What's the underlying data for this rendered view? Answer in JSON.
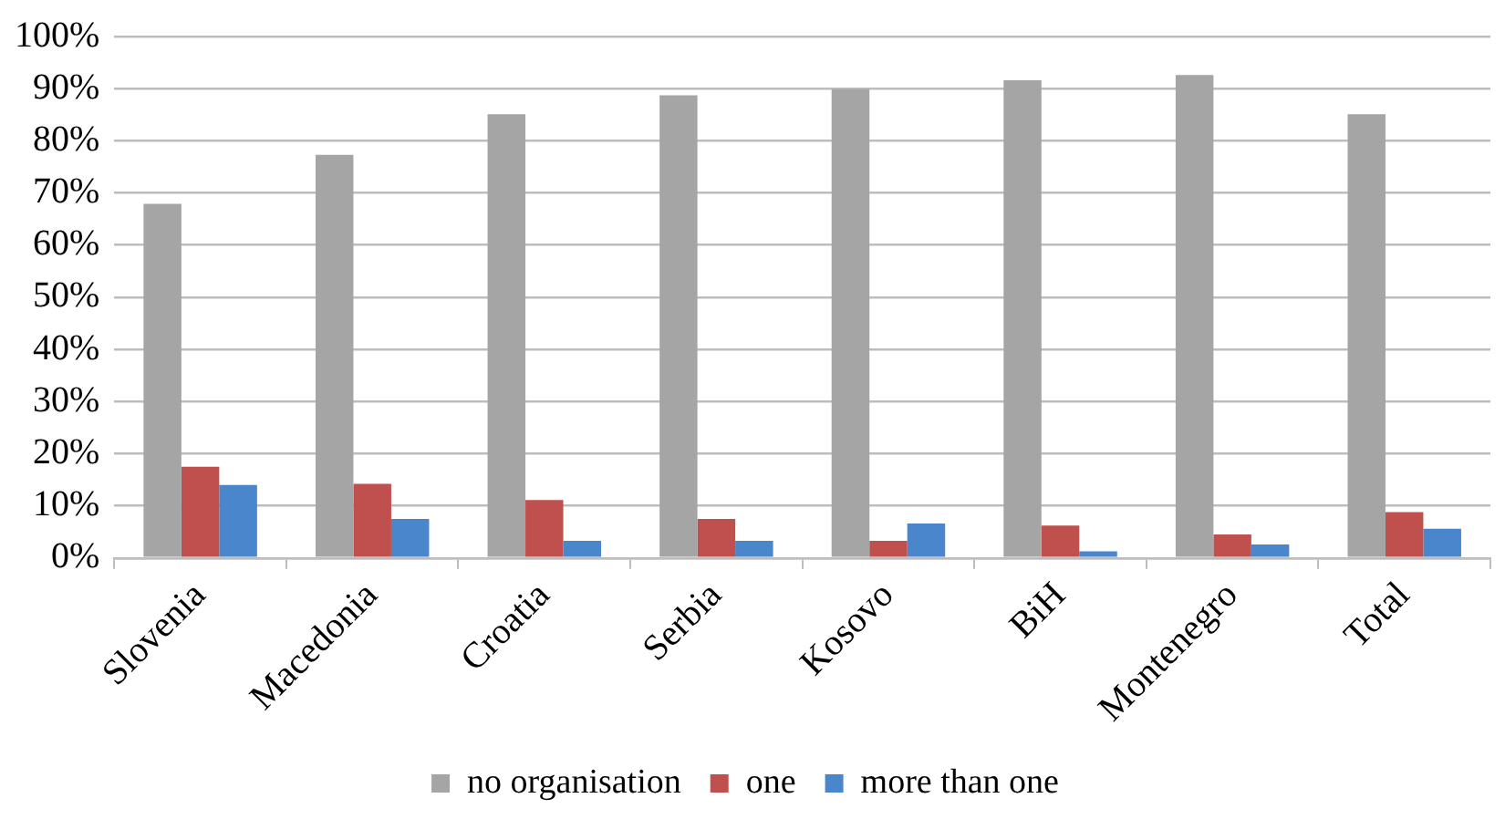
{
  "chart_data": {
    "type": "bar",
    "categories": [
      "Slovenia",
      "Macedonia",
      "Croatia",
      "Serbia",
      "Kosovo",
      "BiH",
      "Montenegro",
      "Total"
    ],
    "series": [
      {
        "name": "no organisation",
        "color": "#a5a5a5",
        "values": [
          67.9,
          77.3,
          85.1,
          88.7,
          89.9,
          91.6,
          92.6,
          85.1
        ]
      },
      {
        "name": "one",
        "color": "#c0504d",
        "values": [
          17.5,
          14.2,
          11.1,
          7.5,
          3.3,
          6.2,
          4.5,
          8.8
        ]
      },
      {
        "name": "more than one",
        "color": "#4a86cc",
        "values": [
          14.0,
          7.5,
          3.3,
          3.3,
          6.6,
          1.3,
          2.6,
          5.6
        ]
      }
    ],
    "ylim": [
      0,
      100
    ],
    "yticks": [
      {
        "value": 0,
        "label": "0%"
      },
      {
        "value": 10,
        "label": "10%"
      },
      {
        "value": 20,
        "label": "20%"
      },
      {
        "value": 30,
        "label": "30%"
      },
      {
        "value": 40,
        "label": "40%"
      },
      {
        "value": 50,
        "label": "50%"
      },
      {
        "value": 60,
        "label": "60%"
      },
      {
        "value": 70,
        "label": "70%"
      },
      {
        "value": 80,
        "label": "80%"
      },
      {
        "value": 90,
        "label": "90%"
      },
      {
        "value": 100,
        "label": "100%"
      }
    ],
    "grid": "y",
    "legend": "bottom"
  }
}
